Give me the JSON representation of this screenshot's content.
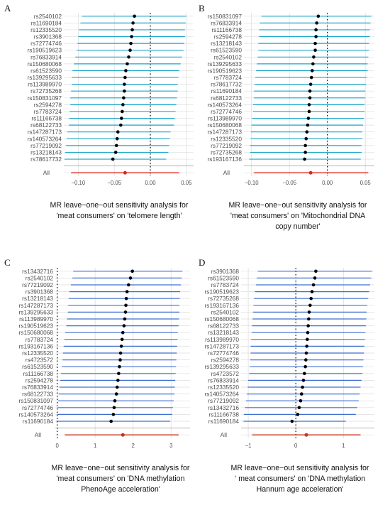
{
  "figure": {
    "panels": [
      "A",
      "B",
      "C",
      "D"
    ]
  },
  "chart_data": [
    {
      "panel": "A",
      "type": "forest",
      "caption": [
        "MR leave−one−out sensitivity analysis for",
        "'meat consumers' on 'telomere length'"
      ],
      "xlim": [
        -0.12,
        0.06
      ],
      "xticks": [
        -0.1,
        -0.05,
        0.0,
        0.05
      ],
      "xtick_labels": [
        "−0.10",
        "−0.05",
        "0.00",
        "0.05"
      ],
      "null_line": 0,
      "rows": [
        {
          "snp": "rs2540102",
          "est": -0.022,
          "lo": -0.095,
          "hi": 0.05
        },
        {
          "snp": "rs11690184",
          "est": -0.024,
          "lo": -0.097,
          "hi": 0.049
        },
        {
          "snp": "rs12335520",
          "est": -0.025,
          "lo": -0.099,
          "hi": 0.048
        },
        {
          "snp": "rs3901368",
          "est": -0.026,
          "lo": -0.1,
          "hi": 0.048
        },
        {
          "snp": "rs72774746",
          "est": -0.027,
          "lo": -0.101,
          "hi": 0.047
        },
        {
          "snp": "rs190519623",
          "est": -0.028,
          "lo": -0.102,
          "hi": 0.046
        },
        {
          "snp": "rs76833914",
          "est": -0.03,
          "lo": -0.104,
          "hi": 0.044
        },
        {
          "snp": "rs150680068",
          "est": -0.032,
          "lo": -0.106,
          "hi": 0.042
        },
        {
          "snp": "rs61523590",
          "est": -0.034,
          "lo": -0.108,
          "hi": 0.04
        },
        {
          "snp": "rs139295633",
          "est": -0.035,
          "lo": -0.109,
          "hi": 0.039
        },
        {
          "snp": "rs113989970",
          "est": -0.036,
          "lo": -0.109,
          "hi": 0.038
        },
        {
          "snp": "rs72735268",
          "est": -0.036,
          "lo": -0.11,
          "hi": 0.038
        },
        {
          "snp": "rs150831097",
          "est": -0.037,
          "lo": -0.111,
          "hi": 0.037
        },
        {
          "snp": "rs2594278",
          "est": -0.038,
          "lo": -0.111,
          "hi": 0.036
        },
        {
          "snp": "rs7783724",
          "est": -0.039,
          "lo": -0.112,
          "hi": 0.035
        },
        {
          "snp": "rs11166738",
          "est": -0.04,
          "lo": -0.113,
          "hi": 0.034
        },
        {
          "snp": "rs68122733",
          "est": -0.041,
          "lo": -0.113,
          "hi": 0.033
        },
        {
          "snp": "rs147287173",
          "est": -0.045,
          "lo": -0.115,
          "hi": 0.028
        },
        {
          "snp": "rs140573264",
          "est": -0.046,
          "lo": -0.116,
          "hi": 0.027
        },
        {
          "snp": "rs77219092",
          "est": -0.047,
          "lo": -0.117,
          "hi": 0.026
        },
        {
          "snp": "rs13218143",
          "est": -0.048,
          "lo": -0.118,
          "hi": 0.025
        },
        {
          "snp": "rs78617732",
          "est": -0.052,
          "lo": -0.119,
          "hi": 0.022
        }
      ],
      "overall": {
        "snp": "All",
        "est": -0.035,
        "lo": -0.11,
        "hi": 0.04
      }
    },
    {
      "panel": "B",
      "type": "forest",
      "caption": [
        "MR leave−one−out sensitivity analysis for",
        "'meat consumers' on 'Mitochondrial DNA",
        "copy number'"
      ],
      "xlim": [
        -0.11,
        0.062
      ],
      "xticks": [
        -0.1,
        -0.05,
        0.0,
        0.05
      ],
      "xtick_labels": [
        "−0.10",
        "−0.05",
        "0.00",
        "0.05"
      ],
      "null_line": 0,
      "rows": [
        {
          "snp": "rs150831097",
          "est": -0.012,
          "lo": -0.087,
          "hi": 0.058
        },
        {
          "snp": "rs76833914",
          "est": -0.014,
          "lo": -0.089,
          "hi": 0.057
        },
        {
          "snp": "rs11166738",
          "est": -0.015,
          "lo": -0.09,
          "hi": 0.056
        },
        {
          "snp": "rs2594278",
          "est": -0.015,
          "lo": -0.09,
          "hi": 0.056
        },
        {
          "snp": "rs13218143",
          "est": -0.016,
          "lo": -0.091,
          "hi": 0.055
        },
        {
          "snp": "rs61523590",
          "est": -0.016,
          "lo": -0.091,
          "hi": 0.055
        },
        {
          "snp": "rs2540102",
          "est": -0.018,
          "lo": -0.092,
          "hi": 0.054
        },
        {
          "snp": "rs139295633",
          "est": -0.019,
          "lo": -0.093,
          "hi": 0.053
        },
        {
          "snp": "rs190519623",
          "est": -0.02,
          "lo": -0.094,
          "hi": 0.053
        },
        {
          "snp": "rs7783724",
          "est": -0.021,
          "lo": -0.095,
          "hi": 0.052
        },
        {
          "snp": "rs78617732",
          "est": -0.022,
          "lo": -0.096,
          "hi": 0.051
        },
        {
          "snp": "rs11690184",
          "est": -0.023,
          "lo": -0.097,
          "hi": 0.05
        },
        {
          "snp": "rs68122733",
          "est": -0.023,
          "lo": -0.097,
          "hi": 0.05
        },
        {
          "snp": "rs140573264",
          "est": -0.024,
          "lo": -0.098,
          "hi": 0.049
        },
        {
          "snp": "rs72774746",
          "est": -0.024,
          "lo": -0.098,
          "hi": 0.049
        },
        {
          "snp": "rs113989970",
          "est": -0.025,
          "lo": -0.099,
          "hi": 0.048
        },
        {
          "snp": "rs150680068",
          "est": -0.026,
          "lo": -0.1,
          "hi": 0.047
        },
        {
          "snp": "rs147287173",
          "est": -0.027,
          "lo": -0.101,
          "hi": 0.046
        },
        {
          "snp": "rs12335520",
          "est": -0.028,
          "lo": -0.101,
          "hi": 0.046
        },
        {
          "snp": "rs77219092",
          "est": -0.029,
          "lo": -0.102,
          "hi": 0.045
        },
        {
          "snp": "rs72735268",
          "est": -0.029,
          "lo": -0.102,
          "hi": 0.045
        },
        {
          "snp": "rs193167136",
          "est": -0.03,
          "lo": -0.103,
          "hi": 0.044
        }
      ],
      "overall": {
        "snp": "All",
        "est": -0.022,
        "lo": -0.097,
        "hi": 0.054
      }
    },
    {
      "panel": "C",
      "type": "forest",
      "caption": [
        "MR leave−one−out sensitivity analysis for",
        "'meat consumers' on 'DNA methylation",
        "PhenoAge acceleration'"
      ],
      "xlim": [
        -0.05,
        3.5
      ],
      "xticks": [
        0,
        1,
        2,
        3
      ],
      "xtick_labels": [
        "0",
        "1",
        "2",
        "3"
      ],
      "null_line": 0,
      "rows": [
        {
          "snp": "rs13432716",
          "est": 1.98,
          "lo": 0.42,
          "hi": 3.3
        },
        {
          "snp": "rs2540102",
          "est": 1.93,
          "lo": 0.4,
          "hi": 3.28
        },
        {
          "snp": "rs77219092",
          "est": 1.88,
          "lo": 0.36,
          "hi": 3.26
        },
        {
          "snp": "rs3901368",
          "est": 1.84,
          "lo": 0.32,
          "hi": 3.24
        },
        {
          "snp": "rs13218143",
          "est": 1.82,
          "lo": 0.3,
          "hi": 3.23
        },
        {
          "snp": "rs147287173",
          "est": 1.81,
          "lo": 0.29,
          "hi": 3.22
        },
        {
          "snp": "rs139295633",
          "est": 1.8,
          "lo": 0.28,
          "hi": 3.22
        },
        {
          "snp": "rs113989970",
          "est": 1.78,
          "lo": 0.26,
          "hi": 3.21
        },
        {
          "snp": "rs190519623",
          "est": 1.76,
          "lo": 0.24,
          "hi": 3.2
        },
        {
          "snp": "rs150680068",
          "est": 1.73,
          "lo": 0.21,
          "hi": 3.18
        },
        {
          "snp": "rs7783724",
          "est": 1.71,
          "lo": 0.19,
          "hi": 3.17
        },
        {
          "snp": "rs193167136",
          "est": 1.69,
          "lo": 0.17,
          "hi": 3.16
        },
        {
          "snp": "rs12335520",
          "est": 1.67,
          "lo": 0.15,
          "hi": 3.15
        },
        {
          "snp": "rs4723572",
          "est": 1.66,
          "lo": 0.14,
          "hi": 3.14
        },
        {
          "snp": "rs61523590",
          "est": 1.64,
          "lo": 0.12,
          "hi": 3.13
        },
        {
          "snp": "rs11166738",
          "est": 1.62,
          "lo": 0.1,
          "hi": 3.12
        },
        {
          "snp": "rs2594278",
          "est": 1.6,
          "lo": 0.08,
          "hi": 3.11
        },
        {
          "snp": "rs76833914",
          "est": 1.58,
          "lo": 0.06,
          "hi": 3.1
        },
        {
          "snp": "rs68122733",
          "est": 1.56,
          "lo": 0.04,
          "hi": 3.09
        },
        {
          "snp": "rs150831097",
          "est": 1.52,
          "lo": 0.02,
          "hi": 3.07
        },
        {
          "snp": "rs72774746",
          "est": 1.5,
          "lo": 0.01,
          "hi": 3.05
        },
        {
          "snp": "rs140573264",
          "est": 1.48,
          "lo": 0.0,
          "hi": 3.03
        },
        {
          "snp": "rs11690184",
          "est": 1.42,
          "lo": -0.02,
          "hi": 2.98
        }
      ],
      "overall": {
        "snp": "All",
        "est": 1.73,
        "lo": 0.2,
        "hi": 3.2
      }
    },
    {
      "panel": "D",
      "type": "forest",
      "caption": [
        "MR leave−one−out sensitivity analysis for",
        "‘ meat consumers' on 'DNA methylation",
        "Hannum age acceleration'"
      ],
      "xlim": [
        -1.15,
        1.65
      ],
      "xticks": [
        -1,
        0,
        1
      ],
      "xtick_labels": [
        "−1",
        "0",
        "1"
      ],
      "null_line": 0,
      "rows": [
        {
          "snp": "rs3901368",
          "est": 0.42,
          "lo": -0.8,
          "hi": 1.6
        },
        {
          "snp": "rs61523590",
          "est": 0.4,
          "lo": -0.82,
          "hi": 1.58
        },
        {
          "snp": "rs7783724",
          "est": 0.37,
          "lo": -0.84,
          "hi": 1.56
        },
        {
          "snp": "rs190519623",
          "est": 0.34,
          "lo": -0.86,
          "hi": 1.54
        },
        {
          "snp": "rs72735268",
          "est": 0.32,
          "lo": -0.88,
          "hi": 1.52
        },
        {
          "snp": "rs193167136",
          "est": 0.3,
          "lo": -0.89,
          "hi": 1.5
        },
        {
          "snp": "rs2540102",
          "est": 0.28,
          "lo": -0.9,
          "hi": 1.49
        },
        {
          "snp": "rs150680068",
          "est": 0.27,
          "lo": -0.91,
          "hi": 1.48
        },
        {
          "snp": "rs68122733",
          "est": 0.26,
          "lo": -0.92,
          "hi": 1.47
        },
        {
          "snp": "rs13218143",
          "est": 0.25,
          "lo": -0.93,
          "hi": 1.46
        },
        {
          "snp": "rs113989970",
          "est": 0.24,
          "lo": -0.94,
          "hi": 1.45
        },
        {
          "snp": "rs147287173",
          "est": 0.23,
          "lo": -0.95,
          "hi": 1.44
        },
        {
          "snp": "rs72774746",
          "est": 0.22,
          "lo": -0.95,
          "hi": 1.43
        },
        {
          "snp": "rs2594278",
          "est": 0.21,
          "lo": -0.96,
          "hi": 1.42
        },
        {
          "snp": "rs139295633",
          "est": 0.2,
          "lo": -0.97,
          "hi": 1.41
        },
        {
          "snp": "rs4723572",
          "est": 0.18,
          "lo": -0.98,
          "hi": 1.4
        },
        {
          "snp": "rs76833914",
          "est": 0.16,
          "lo": -1.0,
          "hi": 1.38
        },
        {
          "snp": "rs12335520",
          "est": 0.14,
          "lo": -1.01,
          "hi": 1.36
        },
        {
          "snp": "rs140573264",
          "est": 0.12,
          "lo": -1.03,
          "hi": 1.34
        },
        {
          "snp": "rs77219092",
          "est": 0.1,
          "lo": -1.05,
          "hi": 1.32
        },
        {
          "snp": "rs13432716",
          "est": 0.07,
          "lo": -1.07,
          "hi": 1.29
        },
        {
          "snp": "rs11166738",
          "est": 0.04,
          "lo": -1.09,
          "hi": 1.26
        },
        {
          "snp": "rs11690184",
          "est": -0.08,
          "lo": -1.1,
          "hi": 1.05
        }
      ],
      "overall": {
        "snp": "All",
        "est": 0.22,
        "lo": -0.92,
        "hi": 1.36
      }
    }
  ],
  "colors": {
    "ci_line": "#1aa6c9",
    "ci_line_dark": "#3f6fd1",
    "overall": "#e0261b",
    "overall_dark": "#c8321e",
    "point": "#000000",
    "grid": "#dedede"
  }
}
